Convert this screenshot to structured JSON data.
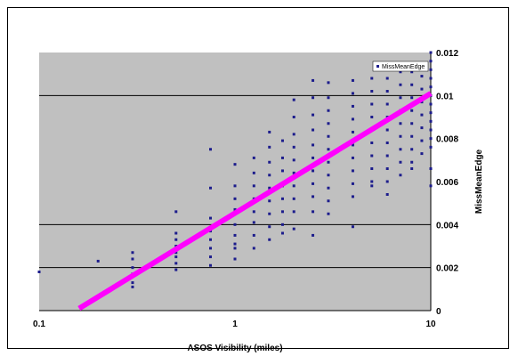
{
  "chart_data": {
    "type": "scatter",
    "title": "",
    "xlabel": "ASOS Visibility (miles)",
    "ylabel": "MissMeanEdge",
    "x_scale": "log",
    "xlim": [
      0.1,
      10
    ],
    "ylim": [
      0,
      0.012
    ],
    "x_ticks": [
      0.1,
      1,
      10
    ],
    "x_tick_labels": [
      "0.1",
      "1",
      "10"
    ],
    "y_ticks": [
      0,
      0.002,
      0.004,
      0.006,
      0.008,
      0.01,
      0.012
    ],
    "y_tick_labels": [
      "0",
      "0.002",
      "0.004",
      "0.006",
      "0.008",
      "0.01",
      "0.012"
    ],
    "y_axis_side": "right",
    "grid": "horizontal major lines",
    "legend": {
      "position": "top-right",
      "entries": [
        "MissMeanEdge"
      ]
    },
    "colors": {
      "points": "#1c1c8c",
      "trend": "#ff00ff",
      "plot_bg": "#c0c0c0"
    },
    "series": [
      {
        "name": "MissMeanEdge",
        "x": [
          0.1,
          0.2,
          0.3,
          0.3,
          0.3,
          0.3,
          0.3,
          0.3,
          0.5,
          0.5,
          0.5,
          0.5,
          0.5,
          0.5,
          0.5,
          0.5,
          0.75,
          0.75,
          0.75,
          0.75,
          0.75,
          0.75,
          0.75,
          0.75,
          1.0,
          1.0,
          1.0,
          1.0,
          1.0,
          1.0,
          1.0,
          1.0,
          1.0,
          1.25,
          1.25,
          1.25,
          1.25,
          1.25,
          1.25,
          1.25,
          1.25,
          1.5,
          1.5,
          1.5,
          1.5,
          1.5,
          1.5,
          1.5,
          1.5,
          1.5,
          1.75,
          1.75,
          1.75,
          1.75,
          1.75,
          1.75,
          1.75,
          1.75,
          2.0,
          2.0,
          2.0,
          2.0,
          2.0,
          2.0,
          2.0,
          2.0,
          2.0,
          2.0,
          2.5,
          2.5,
          2.5,
          2.5,
          2.5,
          2.5,
          2.5,
          2.5,
          2.5,
          2.5,
          2.5,
          3.0,
          3.0,
          3.0,
          3.0,
          3.0,
          3.0,
          3.0,
          3.0,
          3.0,
          3.0,
          3.0,
          4.0,
          4.0,
          4.0,
          4.0,
          4.0,
          4.0,
          4.0,
          4.0,
          4.0,
          4.0,
          4.0,
          5.0,
          5.0,
          5.0,
          5.0,
          5.0,
          5.0,
          5.0,
          5.0,
          5.0,
          5.0,
          6.0,
          6.0,
          6.0,
          6.0,
          6.0,
          6.0,
          6.0,
          6.0,
          6.0,
          6.0,
          7.0,
          7.0,
          7.0,
          7.0,
          7.0,
          7.0,
          7.0,
          7.0,
          7.0,
          8.0,
          8.0,
          8.0,
          8.0,
          8.0,
          8.0,
          8.0,
          8.0,
          8.0,
          9.0,
          9.0,
          9.0,
          9.0,
          9.0,
          9.0,
          9.0,
          9.0,
          10.0,
          10.0,
          10.0,
          10.0,
          10.0,
          10.0,
          10.0,
          10.0,
          10.0,
          10.0,
          10.0,
          10.0,
          10.0,
          10.0
        ],
        "y": [
          0.0018,
          0.0023,
          0.0024,
          0.002,
          0.0017,
          0.0013,
          0.0011,
          0.0027,
          0.0046,
          0.0036,
          0.0033,
          0.003,
          0.0027,
          0.0025,
          0.0022,
          0.0019,
          0.0075,
          0.0057,
          0.0043,
          0.0037,
          0.0033,
          0.0029,
          0.0025,
          0.0021,
          0.0068,
          0.0058,
          0.0052,
          0.0047,
          0.004,
          0.0035,
          0.0031,
          0.0029,
          0.0024,
          0.0071,
          0.0064,
          0.0058,
          0.0052,
          0.0046,
          0.0041,
          0.0035,
          0.0029,
          0.0083,
          0.0076,
          0.0069,
          0.0063,
          0.0057,
          0.0051,
          0.0045,
          0.0039,
          0.0033,
          0.0079,
          0.0071,
          0.0065,
          0.0058,
          0.0052,
          0.0046,
          0.004,
          0.0036,
          0.0098,
          0.009,
          0.0082,
          0.0076,
          0.007,
          0.0064,
          0.0058,
          0.0052,
          0.0046,
          0.0038,
          0.0107,
          0.0099,
          0.0091,
          0.0084,
          0.0077,
          0.0071,
          0.0065,
          0.0059,
          0.0053,
          0.0046,
          0.0035,
          0.0106,
          0.0099,
          0.0093,
          0.0087,
          0.0081,
          0.0075,
          0.0069,
          0.0063,
          0.0057,
          0.0051,
          0.0045,
          0.0107,
          0.0101,
          0.0095,
          0.0089,
          0.0083,
          0.0077,
          0.0071,
          0.0065,
          0.0059,
          0.0053,
          0.0039,
          0.0108,
          0.0102,
          0.0096,
          0.009,
          0.0084,
          0.0078,
          0.0072,
          0.0066,
          0.006,
          0.0058,
          0.0108,
          0.0102,
          0.0096,
          0.009,
          0.0084,
          0.0078,
          0.0072,
          0.0066,
          0.006,
          0.0054,
          0.0111,
          0.0105,
          0.0099,
          0.0093,
          0.0087,
          0.0081,
          0.0075,
          0.0069,
          0.0063,
          0.0111,
          0.0105,
          0.0099,
          0.0093,
          0.0087,
          0.0081,
          0.0075,
          0.0069,
          0.0066,
          0.0115,
          0.0109,
          0.0103,
          0.0097,
          0.0091,
          0.0085,
          0.0079,
          0.0073,
          0.012,
          0.0116,
          0.0112,
          0.0108,
          0.0104,
          0.01,
          0.0096,
          0.0092,
          0.0088,
          0.0084,
          0.008,
          0.0076,
          0.0066,
          0.0058
        ]
      }
    ],
    "trendline": {
      "type": "logarithmic",
      "color": "#ff00ff",
      "x": [
        0.16,
        10
      ],
      "y": [
        0.0001,
        0.0101
      ]
    }
  }
}
